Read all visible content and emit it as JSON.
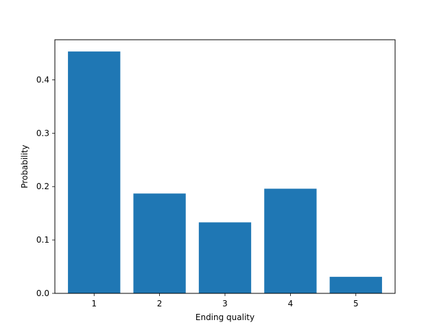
{
  "chart_data": {
    "type": "bar",
    "categories": [
      "1",
      "2",
      "3",
      "4",
      "5"
    ],
    "values": [
      0.453,
      0.187,
      0.133,
      0.196,
      0.031
    ],
    "xlabel": "Ending quality",
    "ylabel": "Probability",
    "ylim": [
      0,
      0.475
    ],
    "yticks": [
      0.0,
      0.1,
      0.2,
      0.3,
      0.4
    ],
    "ytick_labels": [
      "0.0",
      "0.1",
      "0.2",
      "0.3",
      "0.4"
    ],
    "grid": false,
    "bar_color": "#1f77b4"
  }
}
